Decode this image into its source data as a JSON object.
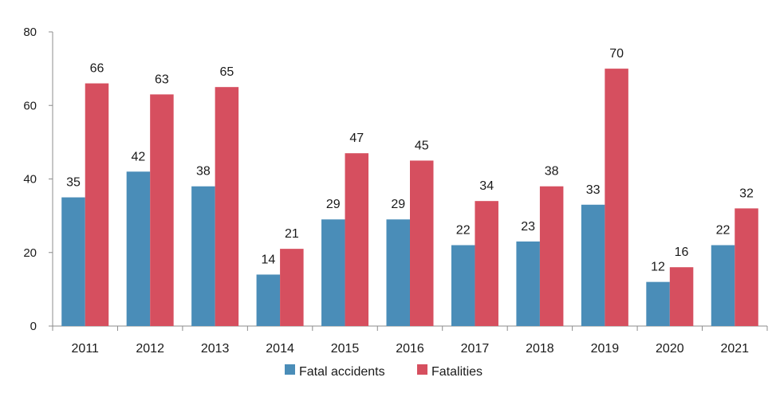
{
  "chart_data": {
    "type": "bar",
    "title": "",
    "xlabel": "",
    "ylabel": "",
    "categories": [
      "2011",
      "2012",
      "2013",
      "2014",
      "2015",
      "2016",
      "2017",
      "2018",
      "2019",
      "2020",
      "2021"
    ],
    "series": [
      {
        "name": "Fatal accidents",
        "color": "#4a8db8",
        "values": [
          35,
          42,
          38,
          14,
          29,
          29,
          22,
          23,
          33,
          12,
          22
        ]
      },
      {
        "name": "Fatalities",
        "color": "#d64f5f",
        "values": [
          66,
          63,
          65,
          21,
          47,
          45,
          34,
          38,
          70,
          16,
          32
        ]
      }
    ],
    "ylim": [
      0,
      80
    ],
    "yticks": [
      0,
      20,
      40,
      60,
      80
    ],
    "grid": false,
    "legend_position": "bottom-center",
    "data_labels": true
  }
}
